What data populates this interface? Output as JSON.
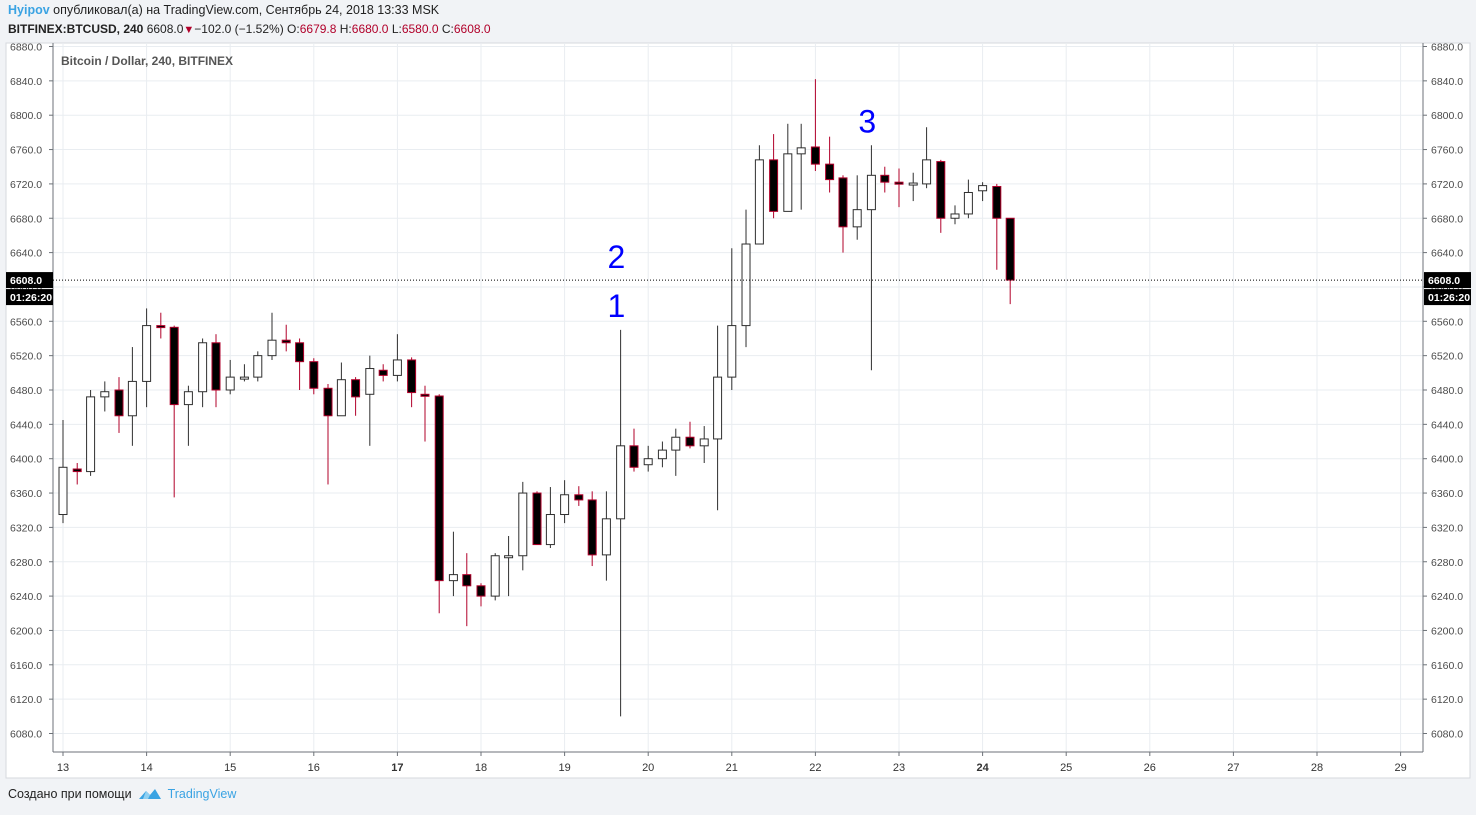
{
  "header": {
    "author": "Hyipov",
    "published_text": "опубликовал(а) на TradingView.com, Сентябрь 24, 2018 13:33 MSK",
    "symbol": "BITFINEX:BTCUSD, 240",
    "last": "6608.0",
    "change": "−102.0 (−1.52%)",
    "o_label": "O:",
    "o": "6679.8",
    "h_label": "H:",
    "h": "6680.0",
    "l_label": "L:",
    "l": "6580.0",
    "c_label": "C:",
    "c": "6608.0"
  },
  "footer": {
    "created_text": "Создано при помощи",
    "brand": "TradingView"
  },
  "colors": {
    "up_fill": "#ffffff",
    "down_fill": "#000000",
    "down_wick": "#b1002a",
    "grid": "#e9edf1",
    "annotation": "#0000ff"
  },
  "chart_data": {
    "type": "candlestick",
    "title": "Bitcoin / Dollar, 240, BITFINEX",
    "ylim": [
      6060,
      6890
    ],
    "y_ticks": [
      "6080.0",
      "6120.0",
      "6160.0",
      "6200.0",
      "6240.0",
      "6280.0",
      "6320.0",
      "6360.0",
      "6400.0",
      "6440.0",
      "6480.0",
      "6520.0",
      "6560.0",
      "6600.0",
      "6640.0",
      "6680.0",
      "6720.0",
      "6760.0",
      "6800.0",
      "6840.0",
      "6880.0"
    ],
    "x_ticks": [
      "13",
      "14",
      "15",
      "16",
      "17",
      "18",
      "19",
      "20",
      "21",
      "22",
      "23",
      "24",
      "25",
      "26",
      "27",
      "28",
      "29"
    ],
    "bold_x_ticks": [
      "17",
      "24"
    ],
    "x_range": [
      13,
      29.2
    ],
    "last_price_label": "6608.0",
    "countdown_label": "01:26:20",
    "last_price": 6608,
    "annotations": [
      {
        "text": "1",
        "x": 19.62,
        "y": 6565
      },
      {
        "text": "2",
        "x": 19.62,
        "y": 6622
      },
      {
        "text": "3",
        "x": 22.62,
        "y": 6780
      }
    ],
    "candles": [
      [
        13.0,
        6335,
        6390,
        6335,
        6445,
        6325
      ],
      [
        13.17,
        6388,
        6385,
        6385,
        6395,
        6370
      ],
      [
        13.33,
        6385,
        6472,
        6385,
        6480,
        6380
      ],
      [
        13.5,
        6472,
        6478,
        6462,
        6490,
        6455
      ],
      [
        13.67,
        6480,
        6450,
        6450,
        6495,
        6430
      ],
      [
        13.83,
        6450,
        6490,
        6450,
        6530,
        6415
      ],
      [
        14.0,
        6490,
        6555,
        6490,
        6575,
        6460
      ],
      [
        14.17,
        6555,
        6553,
        6553,
        6570,
        6540
      ],
      [
        14.33,
        6553,
        6463,
        6463,
        6555,
        6355
      ],
      [
        14.5,
        6463,
        6478,
        6463,
        6485,
        6415
      ],
      [
        14.67,
        6478,
        6535,
        6478,
        6540,
        6460
      ],
      [
        14.83,
        6535,
        6480,
        6480,
        6545,
        6460
      ],
      [
        15.0,
        6480,
        6495,
        6480,
        6515,
        6475
      ],
      [
        15.17,
        6495,
        6495,
        6495,
        6510,
        6490
      ],
      [
        15.33,
        6495,
        6520,
        6495,
        6525,
        6490
      ],
      [
        15.5,
        6520,
        6538,
        6520,
        6570,
        6515
      ],
      [
        15.67,
        6538,
        6535,
        6535,
        6556,
        6525
      ],
      [
        15.83,
        6535,
        6513,
        6513,
        6540,
        6480
      ],
      [
        16.0,
        6513,
        6482,
        6482,
        6517,
        6475
      ],
      [
        16.17,
        6482,
        6450,
        6450,
        6487,
        6370
      ],
      [
        16.33,
        6450,
        6492,
        6450,
        6512,
        6450
      ],
      [
        16.5,
        6492,
        6472,
        6472,
        6495,
        6450
      ],
      [
        16.67,
        6475,
        6505,
        6475,
        6520,
        6415
      ],
      [
        16.83,
        6503,
        6497,
        6497,
        6510,
        6490
      ],
      [
        17.0,
        6497,
        6515,
        6497,
        6545,
        6490
      ],
      [
        17.17,
        6515,
        6477,
        6477,
        6518,
        6460
      ],
      [
        17.33,
        6475,
        6473,
        6473,
        6485,
        6420
      ],
      [
        17.5,
        6473,
        6258,
        6258,
        6475,
        6220
      ],
      [
        17.67,
        6258,
        6265,
        6258,
        6315,
        6240
      ],
      [
        17.83,
        6265,
        6252,
        6252,
        6290,
        6205
      ],
      [
        18.0,
        6252,
        6240,
        6240,
        6255,
        6228
      ],
      [
        18.17,
        6240,
        6287,
        6240,
        6290,
        6235
      ],
      [
        18.33,
        6287,
        6287,
        6287,
        6310,
        6240
      ],
      [
        18.5,
        6287,
        6360,
        6287,
        6373,
        6270
      ],
      [
        18.67,
        6360,
        6300,
        6300,
        6362,
        6300
      ],
      [
        18.83,
        6300,
        6335,
        6300,
        6367,
        6296
      ],
      [
        19.0,
        6335,
        6358,
        6335,
        6375,
        6325
      ],
      [
        19.17,
        6358,
        6352,
        6352,
        6368,
        6345
      ],
      [
        19.33,
        6352,
        6288,
        6288,
        6362,
        6275
      ],
      [
        19.5,
        6288,
        6330,
        6288,
        6362,
        6258
      ],
      [
        19.67,
        6330,
        6415,
        6330,
        6550,
        6100
      ],
      [
        19.83,
        6415,
        6390,
        6390,
        6435,
        6385
      ],
      [
        20.0,
        6393,
        6400,
        6393,
        6415,
        6385
      ],
      [
        20.17,
        6400,
        6410,
        6400,
        6420,
        6390
      ],
      [
        20.33,
        6410,
        6425,
        6410,
        6435,
        6380
      ],
      [
        20.5,
        6425,
        6415,
        6415,
        6443,
        6412
      ],
      [
        20.67,
        6415,
        6423,
        6415,
        6438,
        6395
      ],
      [
        20.83,
        6423,
        6495,
        6423,
        6555,
        6340
      ],
      [
        21.0,
        6495,
        6555,
        6495,
        6645,
        6480
      ],
      [
        21.17,
        6555,
        6650,
        6555,
        6690,
        6530
      ],
      [
        21.33,
        6650,
        6748,
        6650,
        6765,
        6650
      ],
      [
        21.5,
        6748,
        6688,
        6688,
        6778,
        6680
      ],
      [
        21.67,
        6688,
        6755,
        6688,
        6790,
        6688
      ],
      [
        21.83,
        6755,
        6762,
        6755,
        6790,
        6690
      ],
      [
        22.0,
        6763,
        6743,
        6743,
        6842,
        6735
      ],
      [
        22.17,
        6743,
        6725,
        6725,
        6775,
        6710
      ],
      [
        22.33,
        6727,
        6670,
        6670,
        6730,
        6640
      ],
      [
        22.5,
        6670,
        6690,
        6670,
        6730,
        6655
      ],
      [
        22.67,
        6690,
        6730,
        6690,
        6765,
        6503
      ],
      [
        22.83,
        6730,
        6722,
        6722,
        6740,
        6710
      ],
      [
        23.0,
        6722,
        6720,
        6720,
        6738,
        6693
      ],
      [
        23.17,
        6720,
        6721,
        6720,
        6733,
        6700
      ],
      [
        23.33,
        6720,
        6748,
        6720,
        6786,
        6715
      ],
      [
        23.5,
        6746,
        6680,
        6680,
        6748,
        6663
      ],
      [
        23.67,
        6680,
        6685,
        6680,
        6695,
        6673
      ],
      [
        23.83,
        6685,
        6710,
        6685,
        6725,
        6680
      ],
      [
        24.0,
        6712,
        6718,
        6712,
        6722,
        6700
      ],
      [
        24.17,
        6717,
        6680,
        6680,
        6720,
        6620
      ],
      [
        24.33,
        6680,
        6608,
        6608,
        6680,
        6580
      ]
    ]
  }
}
